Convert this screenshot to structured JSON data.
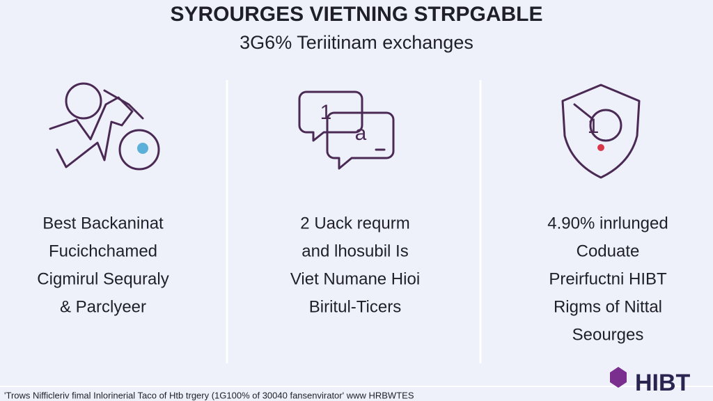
{
  "header": {
    "title": "SYROURGES VIETNING STRPGABLE",
    "subtitle": "3G6% Teriitinam exchanges"
  },
  "columns": [
    {
      "lines": [
        "Best Backaninat",
        "Fucichchamed",
        "Cigmirul Sequraly",
        "& Parclyeer"
      ]
    },
    {
      "icon_labels": [
        "1",
        "a"
      ],
      "lines": [
        "2 Uack requrm",
        "and lhosubil Is",
        "Viet Numane Hioi",
        "Biritul-Ticers"
      ]
    },
    {
      "icon_labels": [
        "1"
      ],
      "lines": [
        "4.90% inrlunged",
        "Coduate",
        "Preirfuctni HIBT",
        "Rigms of Nittal",
        "Seourges"
      ]
    }
  ],
  "footer": {
    "text": "'Trows Nifficleriv fimal Inlorinerial Taco of Htb trgery (1G100% of 30040 fansenvirator' www HRBWTES"
  },
  "logo": {
    "text": "HIBT"
  }
}
